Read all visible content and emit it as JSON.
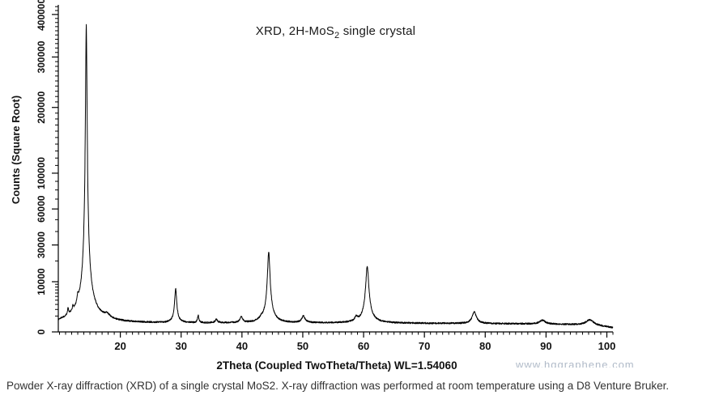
{
  "chart": {
    "title": {
      "pre": "XRD, 2H-MoS",
      "sub": "2",
      "post": " single crystal"
    }
  },
  "chart_data": {
    "type": "line",
    "title": "XRD, 2H-MoS2 single crystal",
    "xlabel": "2Theta (Coupled TwoTheta/Theta) WL=1.54060",
    "ylabel": "Counts (Square Root)",
    "line_color": "#000000",
    "background": "#ffffff",
    "x_axis": {
      "range": [
        9.8,
        101
      ],
      "major_ticks": [
        20,
        30,
        40,
        50,
        60,
        70,
        80,
        90,
        100
      ],
      "minor_step": 1
    },
    "y_axis": {
      "scale": "sqrt",
      "range": [
        0,
        420000
      ],
      "labeled_ticks": [
        0,
        10000,
        30000,
        60000,
        100000,
        200000,
        300000,
        400000
      ],
      "minor_step_below_10000": 1000,
      "minor_step_above_10000": 10000
    },
    "series": [
      {
        "name": "counts",
        "baseline_points": [
          [
            9.8,
            200
          ],
          [
            10.3,
            290
          ],
          [
            30,
            300
          ],
          [
            60,
            310
          ],
          [
            75,
            280
          ],
          [
            85,
            260
          ],
          [
            92,
            230
          ],
          [
            96,
            190
          ],
          [
            99,
            120
          ],
          [
            101,
            60
          ]
        ],
        "peaks": [
          {
            "two_theta": 11.4,
            "intensity": 1100,
            "fwhm": 0.22
          },
          {
            "two_theta": 12.2,
            "intensity": 900,
            "fwhm": 0.2
          },
          {
            "two_theta": 13.0,
            "intensity": 1800,
            "fwhm": 0.25
          },
          {
            "two_theta": 14.4,
            "intensity": 370000,
            "fwhm": 0.28
          },
          {
            "two_theta": 14.4,
            "intensity": 3000,
            "fwhm": 1.3
          },
          {
            "two_theta": 17.8,
            "intensity": 500,
            "fwhm": 1.0
          },
          {
            "two_theta": 29.1,
            "intensity": 7200,
            "fwhm": 0.32
          },
          {
            "two_theta": 32.8,
            "intensity": 800,
            "fwhm": 0.22
          },
          {
            "two_theta": 35.8,
            "intensity": 300,
            "fwhm": 0.4
          },
          {
            "two_theta": 39.9,
            "intensity": 550,
            "fwhm": 0.45
          },
          {
            "two_theta": 43.2,
            "intensity": 250,
            "fwhm": 0.5
          },
          {
            "two_theta": 44.4,
            "intensity": 25200,
            "fwhm": 0.42
          },
          {
            "two_theta": 50.1,
            "intensity": 650,
            "fwhm": 0.6
          },
          {
            "two_theta": 58.8,
            "intensity": 450,
            "fwhm": 0.5
          },
          {
            "two_theta": 60.6,
            "intensity": 16800,
            "fwhm": 0.5
          },
          {
            "two_theta": 78.2,
            "intensity": 1300,
            "fwhm": 0.7
          },
          {
            "two_theta": 89.4,
            "intensity": 300,
            "fwhm": 1.0
          },
          {
            "two_theta": 97.2,
            "intensity": 420,
            "fwhm": 1.3
          }
        ]
      }
    ]
  },
  "watermark": {
    "text": "www.hqgraphene.com",
    "color": "#96a4b6"
  },
  "caption": {
    "text": "Powder X-ray diffraction (XRD) of a single crystal MoS2. X-ray diffraction was performed at room temperature using a D8 Venture Bruker.",
    "color": "#333333"
  }
}
